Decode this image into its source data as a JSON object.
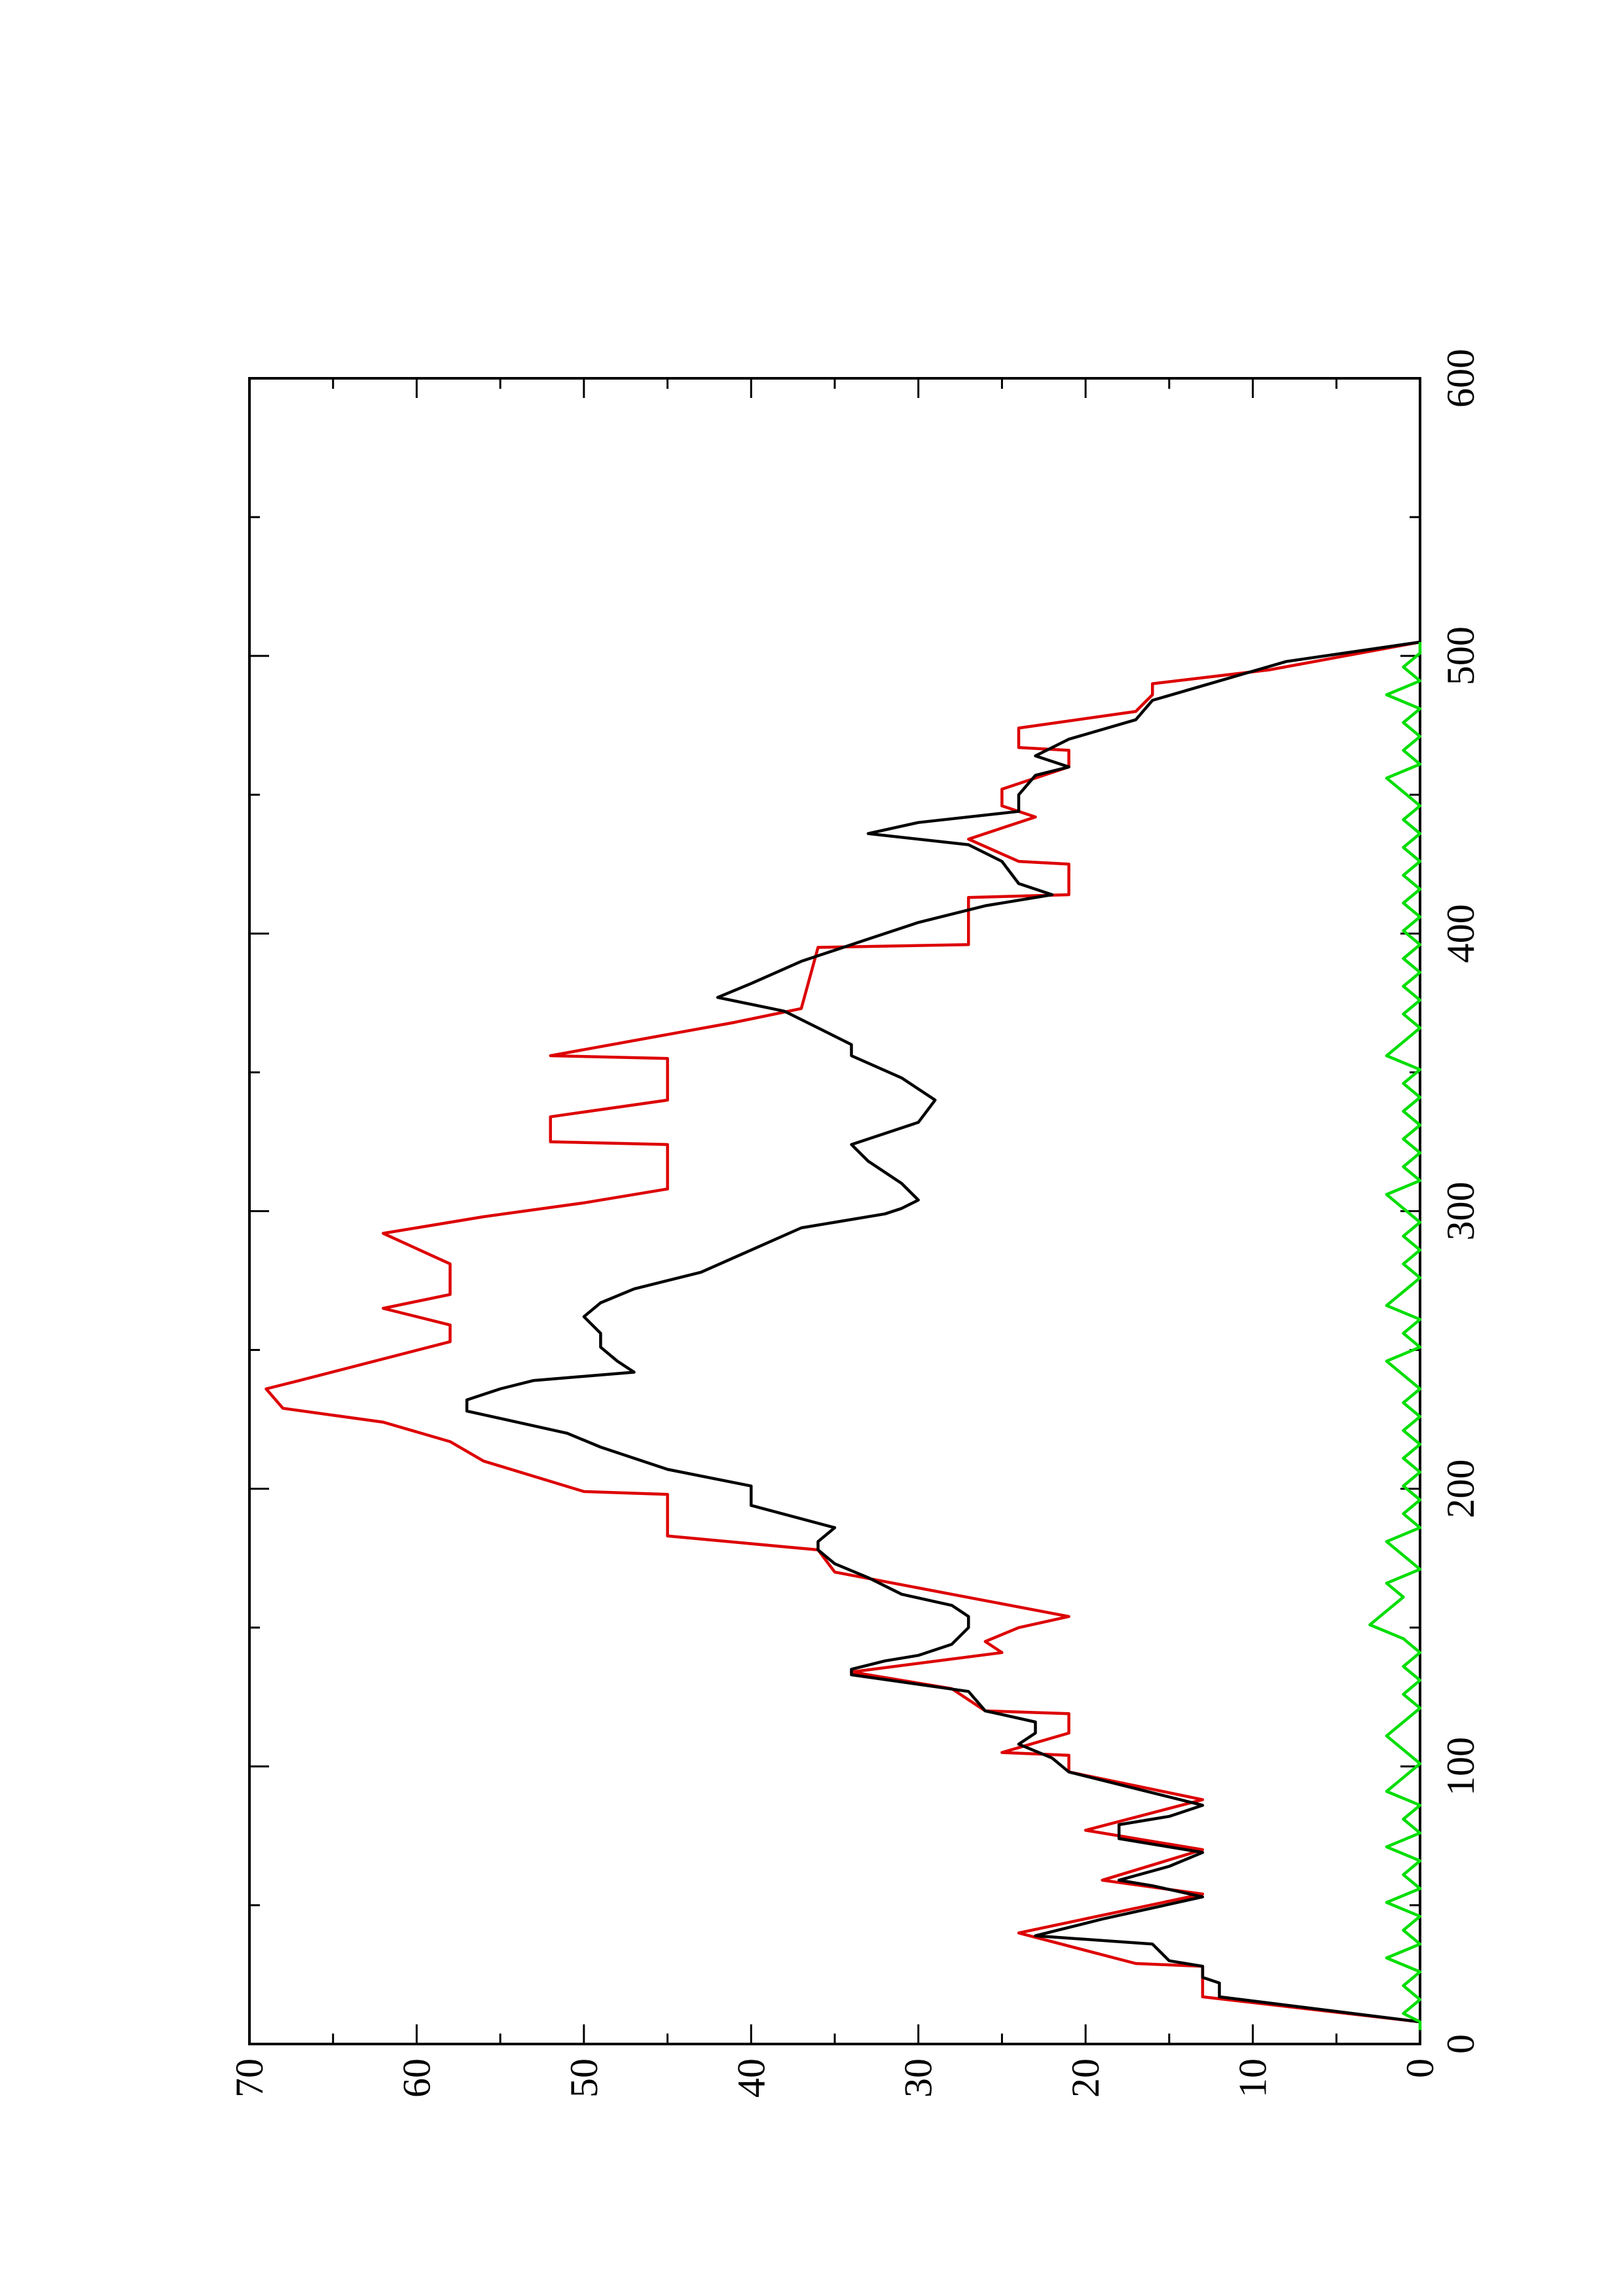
{
  "chart_data": {
    "type": "line",
    "orientation": "rotated-90-clockwise",
    "title": "",
    "xlabel": "",
    "ylabel": "",
    "xlim": [
      0,
      600
    ],
    "ylim": [
      0,
      70
    ],
    "x_ticks": [
      0,
      100,
      200,
      300,
      400,
      500,
      600
    ],
    "x_tick_labels": [
      "0",
      "100",
      "200",
      "300",
      "400",
      "500",
      "600"
    ],
    "x_minor_ticks": [
      50,
      150,
      250,
      350,
      450,
      550
    ],
    "y_ticks": [
      0,
      10,
      20,
      30,
      40,
      50,
      60,
      70
    ],
    "y_tick_labels": [
      "0",
      "10",
      "20",
      "30",
      "40",
      "50",
      "60",
      "70"
    ],
    "y_minor_ticks": [
      5,
      15,
      25,
      35,
      45,
      55,
      65
    ],
    "grid": false,
    "legend": "none",
    "series": [
      {
        "color": "#dd0000",
        "style": "step",
        "points": [
          [
            8,
            0
          ],
          [
            17,
            13
          ],
          [
            28,
            13
          ],
          [
            29,
            17
          ],
          [
            40,
            24
          ],
          [
            54,
            13
          ],
          [
            59,
            19
          ],
          [
            70,
            13
          ],
          [
            77,
            20
          ],
          [
            88,
            13
          ],
          [
            98,
            21
          ],
          [
            104,
            21
          ],
          [
            105,
            25
          ],
          [
            112,
            21
          ],
          [
            119,
            21
          ],
          [
            120,
            26
          ],
          [
            128,
            28
          ],
          [
            134,
            34
          ],
          [
            141,
            25
          ],
          [
            145,
            26
          ],
          [
            150,
            24
          ],
          [
            154,
            21
          ],
          [
            170,
            35
          ],
          [
            178,
            36
          ],
          [
            183,
            45
          ],
          [
            198,
            45
          ],
          [
            199,
            50
          ],
          [
            210,
            56
          ],
          [
            217,
            58
          ],
          [
            224,
            62
          ],
          [
            229,
            68
          ],
          [
            236,
            69
          ],
          [
            239,
            67
          ],
          [
            253,
            58
          ],
          [
            259,
            58
          ],
          [
            265,
            62
          ],
          [
            270,
            58
          ],
          [
            281,
            58
          ],
          [
            292,
            62
          ],
          [
            298,
            56
          ],
          [
            303,
            50
          ],
          [
            308,
            45
          ],
          [
            324,
            45
          ],
          [
            325,
            52
          ],
          [
            334,
            52
          ],
          [
            340,
            45
          ],
          [
            355,
            45
          ],
          [
            356,
            52
          ],
          [
            368,
            41
          ],
          [
            373,
            37
          ],
          [
            395,
            36
          ],
          [
            396,
            27
          ],
          [
            413,
            27
          ],
          [
            414,
            21
          ],
          [
            425,
            21
          ],
          [
            426,
            24
          ],
          [
            434,
            27
          ],
          [
            442,
            23
          ],
          [
            446,
            25
          ],
          [
            452,
            25
          ],
          [
            460,
            21
          ],
          [
            466,
            21
          ],
          [
            467,
            24
          ],
          [
            474,
            24
          ],
          [
            480,
            17
          ],
          [
            486,
            16
          ],
          [
            490,
            16
          ],
          [
            495,
            9
          ],
          [
            505,
            0
          ]
        ]
      },
      {
        "color": "#000000",
        "style": "line",
        "points": [
          [
            8,
            0
          ],
          [
            17,
            12
          ],
          [
            22,
            12
          ],
          [
            24,
            13
          ],
          [
            28,
            13
          ],
          [
            30,
            15
          ],
          [
            36,
            16
          ],
          [
            39,
            23
          ],
          [
            45,
            19
          ],
          [
            53,
            13
          ],
          [
            57,
            16
          ],
          [
            59,
            18
          ],
          [
            64,
            15
          ],
          [
            69,
            13
          ],
          [
            72,
            16
          ],
          [
            74,
            18
          ],
          [
            79,
            18
          ],
          [
            82,
            15
          ],
          [
            86,
            13
          ],
          [
            92,
            17
          ],
          [
            98,
            21
          ],
          [
            103,
            22
          ],
          [
            108,
            24
          ],
          [
            112,
            23
          ],
          [
            116,
            23
          ],
          [
            120,
            26
          ],
          [
            127,
            27
          ],
          [
            133,
            34
          ],
          [
            135,
            34
          ],
          [
            138,
            32
          ],
          [
            140,
            30
          ],
          [
            144,
            28
          ],
          [
            150,
            27
          ],
          [
            154,
            27
          ],
          [
            158,
            28
          ],
          [
            162,
            31
          ],
          [
            168,
            33
          ],
          [
            173,
            35
          ],
          [
            178,
            36
          ],
          [
            181,
            36
          ],
          [
            186,
            35
          ],
          [
            194,
            40
          ],
          [
            201,
            40
          ],
          [
            207,
            45
          ],
          [
            215,
            49
          ],
          [
            220,
            51
          ],
          [
            228,
            57
          ],
          [
            232,
            57
          ],
          [
            236,
            55
          ],
          [
            239,
            53
          ],
          [
            242,
            47
          ],
          [
            246,
            48
          ],
          [
            251,
            49
          ],
          [
            256,
            49
          ],
          [
            262,
            50
          ],
          [
            267,
            49
          ],
          [
            272,
            47
          ],
          [
            278,
            43
          ],
          [
            286,
            40
          ],
          [
            294,
            37
          ],
          [
            299,
            32
          ],
          [
            301,
            31
          ],
          [
            304,
            30
          ],
          [
            310,
            31
          ],
          [
            318,
            33
          ],
          [
            324,
            34
          ],
          [
            332,
            30
          ],
          [
            340,
            29
          ],
          [
            348,
            31
          ],
          [
            356,
            34
          ],
          [
            360,
            34
          ],
          [
            366,
            36
          ],
          [
            372,
            38
          ],
          [
            377,
            42
          ],
          [
            382,
            40
          ],
          [
            390,
            37
          ],
          [
            398,
            33
          ],
          [
            404,
            30
          ],
          [
            410,
            26
          ],
          [
            414,
            22
          ],
          [
            418,
            24
          ],
          [
            426,
            25
          ],
          [
            432,
            27
          ],
          [
            436,
            33
          ],
          [
            440,
            30
          ],
          [
            444,
            24
          ],
          [
            450,
            24
          ],
          [
            457,
            23
          ],
          [
            460,
            21
          ],
          [
            464,
            23
          ],
          [
            470,
            21
          ],
          [
            477,
            17
          ],
          [
            484,
            16
          ],
          [
            491,
            12
          ],
          [
            498,
            8
          ],
          [
            505,
            0
          ]
        ]
      },
      {
        "color": "#00dd00",
        "style": "line",
        "points": [
          [
            5,
            0
          ],
          [
            8,
            0
          ],
          [
            11,
            1
          ],
          [
            16,
            0
          ],
          [
            21,
            1
          ],
          [
            26,
            0
          ],
          [
            31,
            2
          ],
          [
            36,
            0
          ],
          [
            41,
            1
          ],
          [
            46,
            0
          ],
          [
            51,
            2
          ],
          [
            56,
            0
          ],
          [
            61,
            1
          ],
          [
            66,
            0
          ],
          [
            71,
            2
          ],
          [
            76,
            0
          ],
          [
            81,
            1
          ],
          [
            86,
            0
          ],
          [
            91,
            2
          ],
          [
            96,
            1
          ],
          [
            101,
            0
          ],
          [
            106,
            1
          ],
          [
            111,
            2
          ],
          [
            116,
            1
          ],
          [
            121,
            0
          ],
          [
            126,
            1
          ],
          [
            131,
            0
          ],
          [
            136,
            1
          ],
          [
            141,
            0
          ],
          [
            146,
            1
          ],
          [
            151,
            3
          ],
          [
            156,
            2
          ],
          [
            161,
            1
          ],
          [
            166,
            2
          ],
          [
            171,
            0
          ],
          [
            176,
            1
          ],
          [
            181,
            2
          ],
          [
            186,
            0
          ],
          [
            191,
            1
          ],
          [
            196,
            0
          ],
          [
            201,
            1
          ],
          [
            206,
            0
          ],
          [
            211,
            1
          ],
          [
            216,
            0
          ],
          [
            221,
            1
          ],
          [
            226,
            0
          ],
          [
            231,
            1
          ],
          [
            236,
            0
          ],
          [
            241,
            1
          ],
          [
            246,
            2
          ],
          [
            251,
            0
          ],
          [
            256,
            1
          ],
          [
            261,
            0
          ],
          [
            266,
            2
          ],
          [
            271,
            1
          ],
          [
            276,
            0
          ],
          [
            281,
            1
          ],
          [
            286,
            0
          ],
          [
            291,
            1
          ],
          [
            296,
            0
          ],
          [
            301,
            1
          ],
          [
            306,
            2
          ],
          [
            311,
            0
          ],
          [
            316,
            1
          ],
          [
            321,
            0
          ],
          [
            326,
            1
          ],
          [
            331,
            0
          ],
          [
            336,
            1
          ],
          [
            341,
            0
          ],
          [
            346,
            1
          ],
          [
            351,
            0
          ],
          [
            356,
            2
          ],
          [
            361,
            1
          ],
          [
            366,
            0
          ],
          [
            371,
            1
          ],
          [
            376,
            0
          ],
          [
            381,
            1
          ],
          [
            386,
            0
          ],
          [
            391,
            1
          ],
          [
            396,
            0
          ],
          [
            401,
            1
          ],
          [
            406,
            0
          ],
          [
            411,
            1
          ],
          [
            416,
            0
          ],
          [
            421,
            1
          ],
          [
            426,
            0
          ],
          [
            431,
            1
          ],
          [
            436,
            0
          ],
          [
            441,
            1
          ],
          [
            446,
            0
          ],
          [
            451,
            1
          ],
          [
            456,
            2
          ],
          [
            461,
            0
          ],
          [
            466,
            1
          ],
          [
            471,
            0
          ],
          [
            476,
            1
          ],
          [
            481,
            0
          ],
          [
            486,
            2
          ],
          [
            491,
            0
          ],
          [
            496,
            1
          ],
          [
            501,
            0
          ],
          [
            505,
            0
          ]
        ]
      }
    ]
  }
}
